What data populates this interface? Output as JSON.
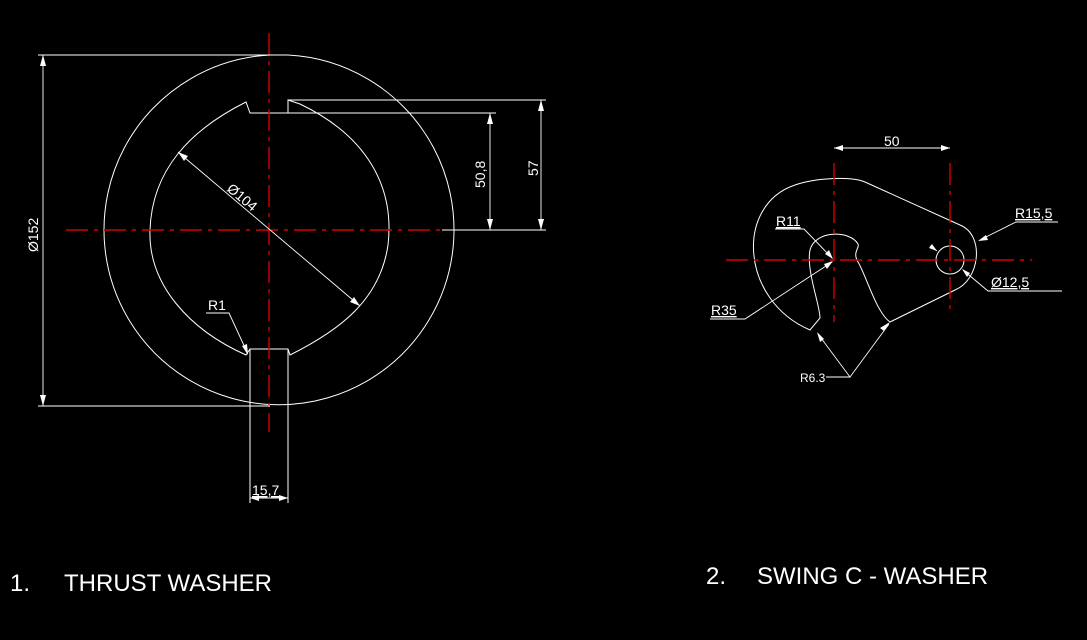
{
  "part1": {
    "number": "1.",
    "title": "THRUST WASHER",
    "dims": {
      "outer_dia": "Ø152",
      "inner_dia": "Ø104",
      "height_a": "50,8",
      "height_b": "57",
      "fillet": "R1",
      "slot_width": "15,7"
    }
  },
  "part2": {
    "number": "2.",
    "title": "SWING C - WASHER",
    "dims": {
      "center_dist": "50",
      "r_small": "R11",
      "r_outer": "R35",
      "r_lobe": "R15,5",
      "hole_dia": "Ø12,5",
      "r_notch": "R6.3"
    }
  },
  "colors": {
    "background": "#000000",
    "geometry": "#ffffff",
    "centerline": "#d40000"
  }
}
